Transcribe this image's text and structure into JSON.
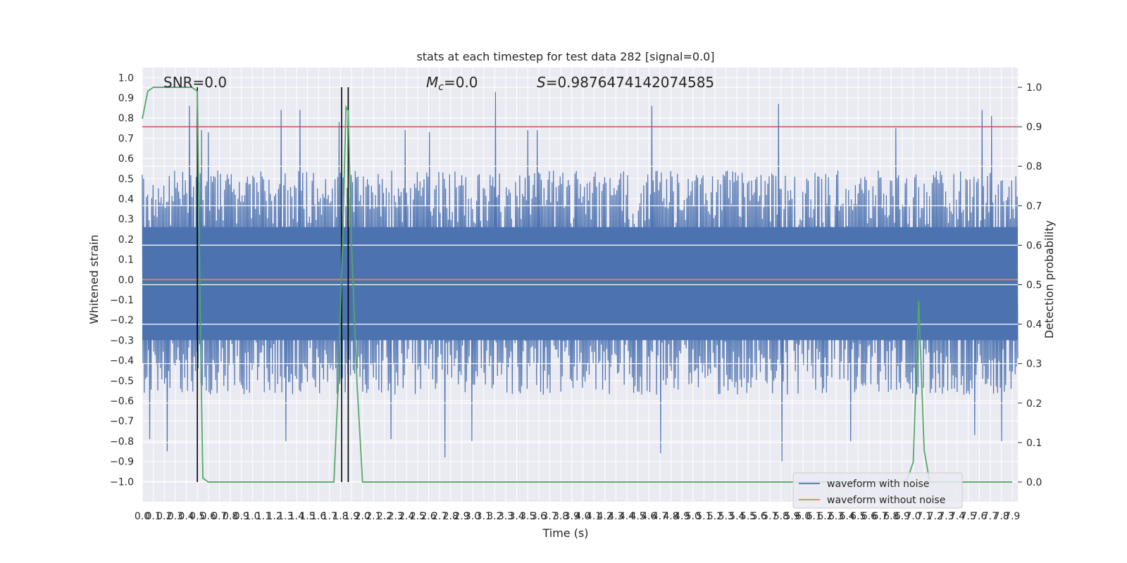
{
  "chart_data": {
    "type": "line",
    "title": "stats at each timestep for test data 282 [signal=0.0]",
    "xlabel": "Time (s)",
    "ylabel": "Whitened strain",
    "y2label": "Detection probability",
    "xlim": [
      0.0,
      7.95
    ],
    "ylim": [
      -1.1,
      1.05
    ],
    "y2lim": [
      -0.05,
      1.05
    ],
    "x_ticks": [
      "0.0",
      "0.1",
      "0.2",
      "0.3",
      "0.4",
      "0.5",
      "0.6",
      "0.7",
      "0.8",
      "0.9",
      "1.0",
      "1.1",
      "1.2",
      "1.3",
      "1.4",
      "1.5",
      "1.6",
      "1.7",
      "1.8",
      "1.9",
      "2.0",
      "2.1",
      "2.2",
      "2.3",
      "2.4",
      "2.5",
      "2.6",
      "2.7",
      "2.8",
      "2.9",
      "3.0",
      "3.1",
      "3.2",
      "3.3",
      "3.4",
      "3.5",
      "3.6",
      "3.7",
      "3.8",
      "3.9",
      "4.0",
      "4.1",
      "4.2",
      "4.3",
      "4.4",
      "4.5",
      "4.6",
      "4.7",
      "4.8",
      "4.9",
      "5.0",
      "5.1",
      "5.2",
      "5.3",
      "5.4",
      "5.5",
      "5.6",
      "5.7",
      "5.8",
      "5.9",
      "6.0",
      "6.1",
      "6.2",
      "6.3",
      "6.4",
      "6.5",
      "6.6",
      "6.7",
      "6.8",
      "6.9",
      "7.0",
      "7.1",
      "7.2",
      "7.3",
      "7.4",
      "7.5",
      "7.6",
      "7.7",
      "7.8",
      "7.9"
    ],
    "y_ticks": [
      "1.0",
      "0.9",
      "0.8",
      "0.7",
      "0.6",
      "0.5",
      "0.4",
      "0.3",
      "0.2",
      "0.1",
      "0.0",
      "−0.1",
      "−0.2",
      "−0.3",
      "−0.4",
      "−0.5",
      "−0.6",
      "−0.7",
      "−0.8",
      "−0.9",
      "−1.0"
    ],
    "y2_ticks": [
      "1.0",
      "0.9",
      "0.8",
      "0.7",
      "0.6",
      "0.5",
      "0.4",
      "0.3",
      "0.2",
      "0.1",
      "0.0"
    ],
    "annotations": [
      "SNR=0.0",
      "=0.0",
      "=0.9876474142074585"
    ],
    "annotation_symbols": {
      "mc": "M",
      "mc_sub": "c",
      "s": "S"
    },
    "grid": true,
    "legend_placement": "lower-right",
    "legend": [
      "waveform with noise",
      "waveform without noise"
    ],
    "threshold_prob": 0.9,
    "detection_markers_x": [
      0.5,
      1.81,
      1.87
    ],
    "series_colors": {
      "noise": "#4c72b0",
      "clean": "#dd8452",
      "prob": "#55a868",
      "threshold": "#c44e52",
      "marker": "#000000"
    },
    "noise_amplitude": {
      "typical_min": -0.45,
      "typical_max": 0.42,
      "peak_max": 0.93,
      "peak_min": -0.9
    },
    "probability": {
      "x": [
        0.0,
        0.05,
        0.1,
        0.2,
        0.3,
        0.4,
        0.45,
        0.5,
        0.53,
        0.55,
        0.6,
        1.0,
        1.4,
        1.5,
        1.74,
        1.78,
        1.82,
        1.85,
        1.87,
        1.9,
        1.95,
        2.0,
        6.9,
        6.95,
        7.0,
        7.05,
        7.1,
        7.15,
        7.9
      ],
      "y": [
        0.92,
        0.99,
        1.0,
        1.0,
        1.0,
        1.0,
        1.0,
        0.99,
        0.35,
        0.01,
        0.0,
        0.0,
        0.0,
        0.0,
        0.0,
        0.25,
        0.62,
        0.95,
        0.94,
        0.6,
        0.25,
        0.0,
        0.0,
        0.01,
        0.05,
        0.46,
        0.08,
        0.0,
        0.0
      ]
    },
    "peaks": [
      {
        "x": 0.42,
        "y": 0.86
      },
      {
        "x": 0.53,
        "y": 0.74
      },
      {
        "x": 0.6,
        "y": 0.73
      },
      {
        "x": 1.26,
        "y": 0.84
      },
      {
        "x": 1.43,
        "y": 0.84
      },
      {
        "x": 1.79,
        "y": 0.78
      },
      {
        "x": 2.38,
        "y": 0.74
      },
      {
        "x": 2.6,
        "y": 0.73
      },
      {
        "x": 3.2,
        "y": 0.93
      },
      {
        "x": 3.5,
        "y": 0.74
      },
      {
        "x": 3.58,
        "y": 0.74
      },
      {
        "x": 4.62,
        "y": 0.86
      },
      {
        "x": 5.78,
        "y": 0.87
      },
      {
        "x": 6.84,
        "y": 0.75
      },
      {
        "x": 7.62,
        "y": 0.84
      },
      {
        "x": 7.71,
        "y": 0.81
      },
      {
        "x": 0.22,
        "y": -0.85
      },
      {
        "x": 0.07,
        "y": -0.79
      },
      {
        "x": 1.3,
        "y": -0.8
      },
      {
        "x": 2.75,
        "y": -0.88
      },
      {
        "x": 2.99,
        "y": -0.8
      },
      {
        "x": 4.7,
        "y": -0.86
      },
      {
        "x": 5.8,
        "y": -0.9
      },
      {
        "x": 6.43,
        "y": -0.8
      },
      {
        "x": 7.8,
        "y": -0.8
      },
      {
        "x": 2.25,
        "y": -0.79
      },
      {
        "x": 7.55,
        "y": -0.77
      }
    ]
  }
}
